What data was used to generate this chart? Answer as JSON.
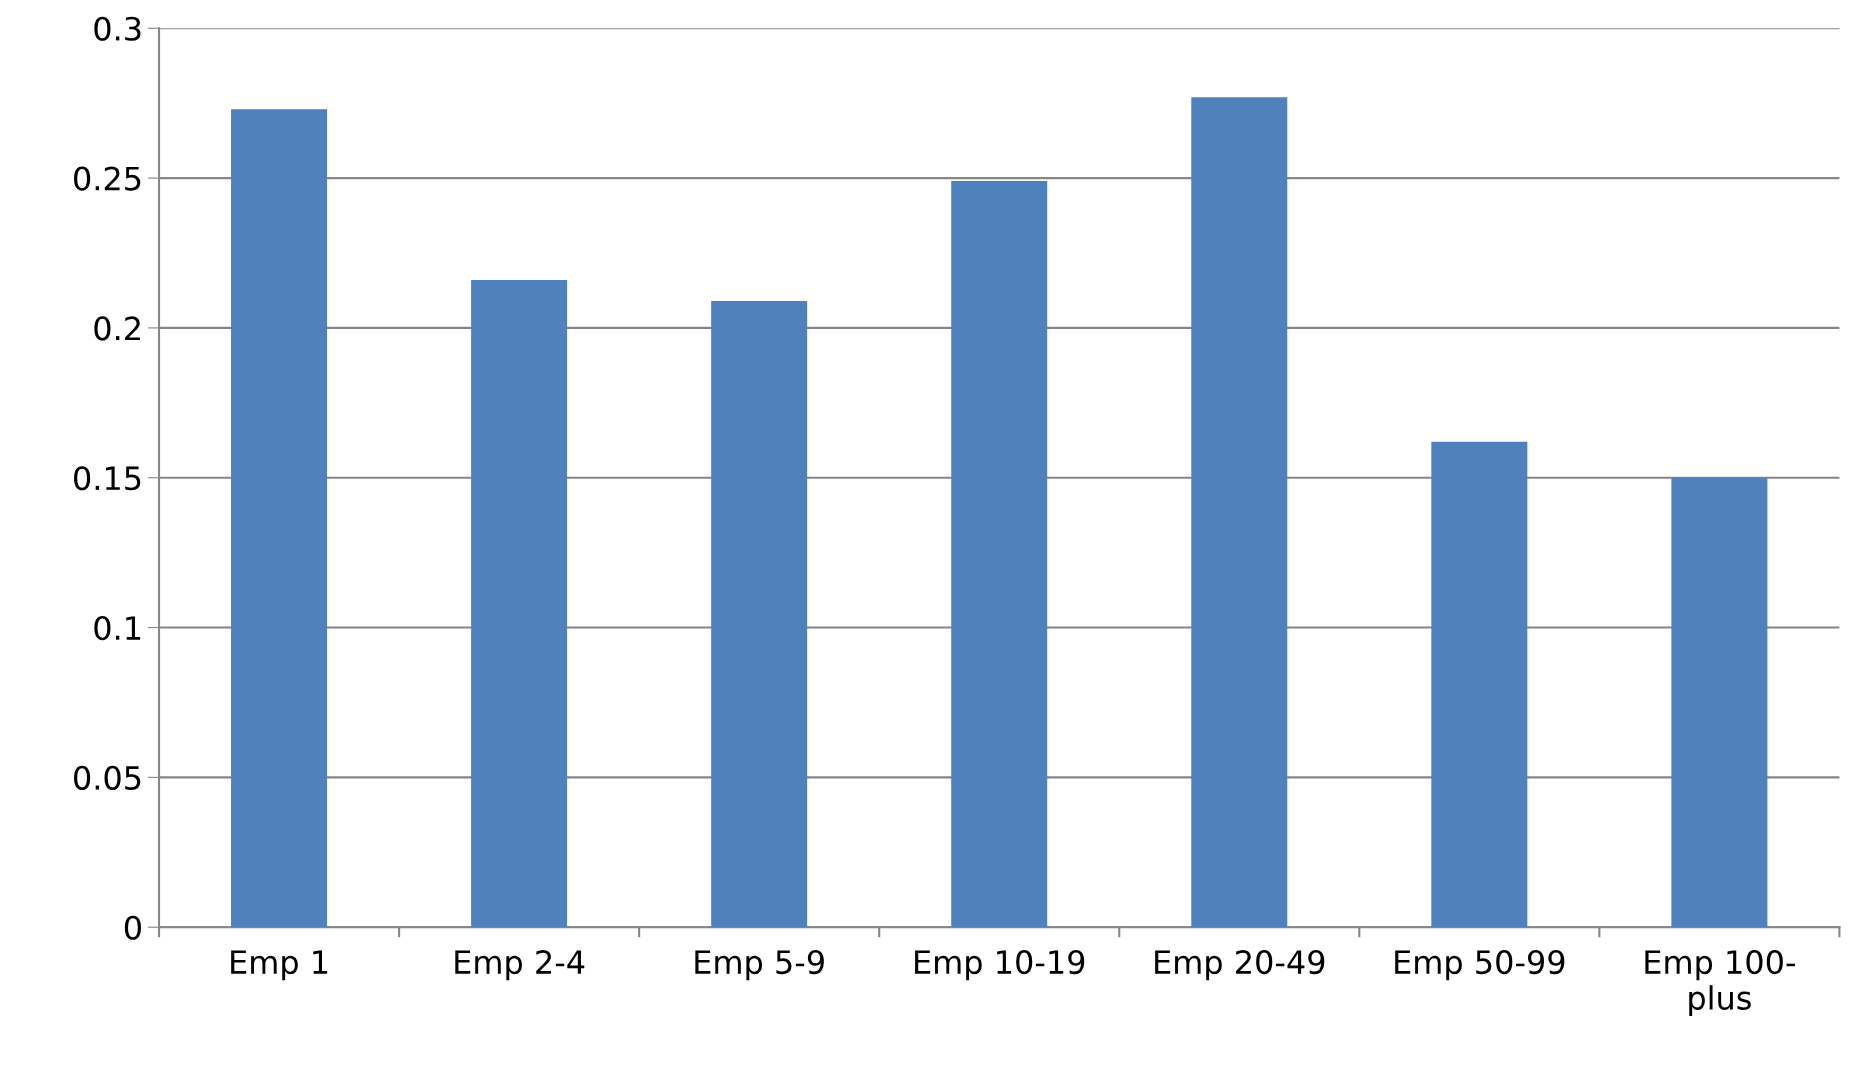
{
  "chart_data": {
    "type": "bar",
    "categories": [
      "Emp 1",
      "Emp 2-4",
      "Emp 5-9",
      "Emp 10-19",
      "Emp 20-49",
      "Emp 50-99",
      "Emp 100-plus"
    ],
    "values": [
      0.273,
      0.216,
      0.209,
      0.249,
      0.277,
      0.162,
      0.15
    ],
    "color": "#4f81bd",
    "ylim": [
      0,
      0.3
    ],
    "yticks": [
      0,
      0.05,
      0.1,
      0.15,
      0.2,
      0.25,
      0.3
    ],
    "grid": "y",
    "legend": false
  }
}
